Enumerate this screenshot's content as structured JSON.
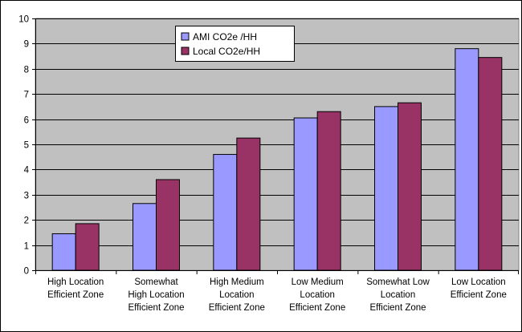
{
  "chart_data": {
    "type": "bar",
    "categories": [
      [
        "High Location",
        "Efficient Zone"
      ],
      [
        "Somewhat",
        "High Location",
        "Efficient Zone"
      ],
      [
        "High Medium",
        "Location",
        "Efficient Zone"
      ],
      [
        "Low Medium",
        "Location",
        "Efficient Zone"
      ],
      [
        "Somewhat Low",
        "Location",
        "Efficient Zone"
      ],
      [
        "Low Location",
        "Efficient Zone"
      ]
    ],
    "series": [
      {
        "name": "AMI CO2e /HH",
        "color": "#9999ff",
        "values": [
          1.45,
          2.65,
          4.6,
          6.05,
          6.5,
          8.8
        ]
      },
      {
        "name": "Local CO2e/HH",
        "color": "#993366",
        "values": [
          1.85,
          3.6,
          5.25,
          6.3,
          6.65,
          8.45
        ]
      }
    ],
    "ylim": [
      0,
      10
    ],
    "yticks": [
      0,
      1,
      2,
      3,
      4,
      5,
      6,
      7,
      8,
      9,
      10
    ],
    "grid": true,
    "plot_background": "#c0c0c0",
    "legend_position": "top-left-inside",
    "title": "",
    "xlabel": "",
    "ylabel": ""
  }
}
